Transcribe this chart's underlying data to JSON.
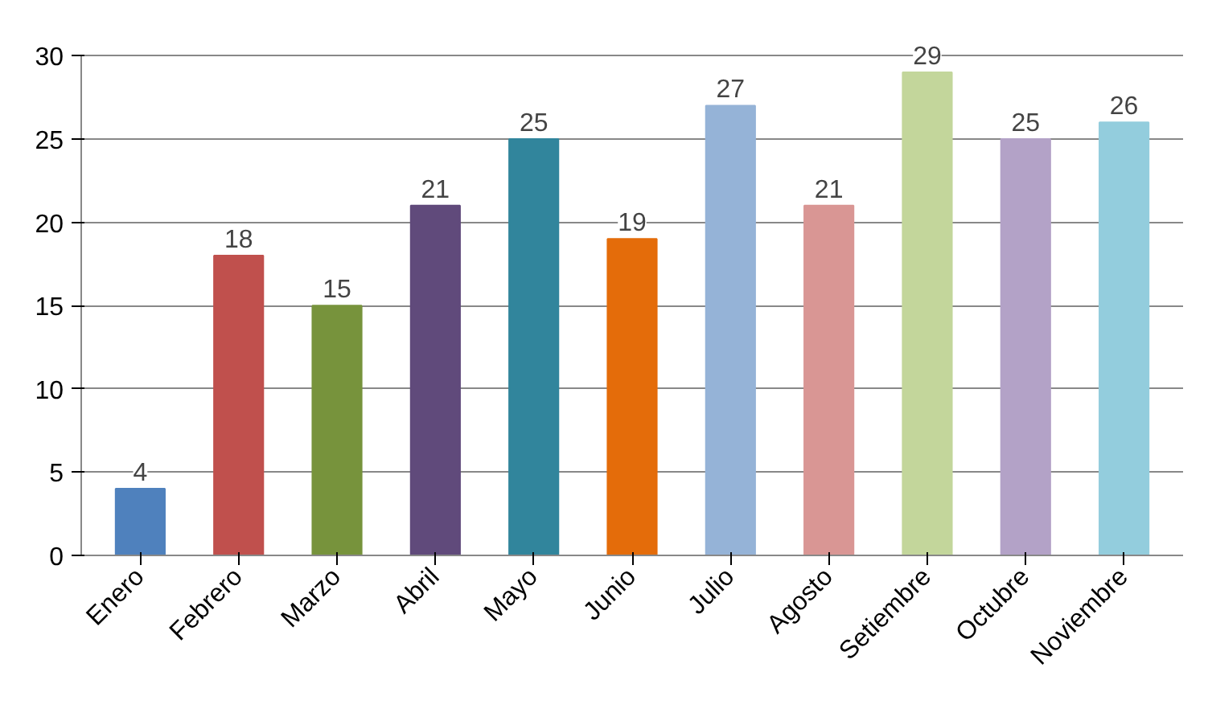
{
  "chart_data": {
    "type": "bar",
    "categories": [
      "Enero",
      "Febrero",
      "Marzo",
      "Abril",
      "Mayo",
      "Junio",
      "Julio",
      "Agosto",
      "Setiembre",
      "Octubre",
      "Noviembre"
    ],
    "values": [
      4,
      18,
      15,
      21,
      25,
      19,
      27,
      21,
      29,
      25,
      26
    ],
    "colors": [
      "#4f81bd",
      "#c0504d",
      "#77933c",
      "#604a7b",
      "#31859c",
      "#e46c0a",
      "#95b3d7",
      "#d99694",
      "#c3d69b",
      "#b3a2c7",
      "#93cddd"
    ],
    "ylim": [
      0,
      30
    ],
    "yticks": [
      0,
      5,
      10,
      15,
      20,
      25,
      30
    ],
    "grid": "y",
    "data_labels": true
  }
}
